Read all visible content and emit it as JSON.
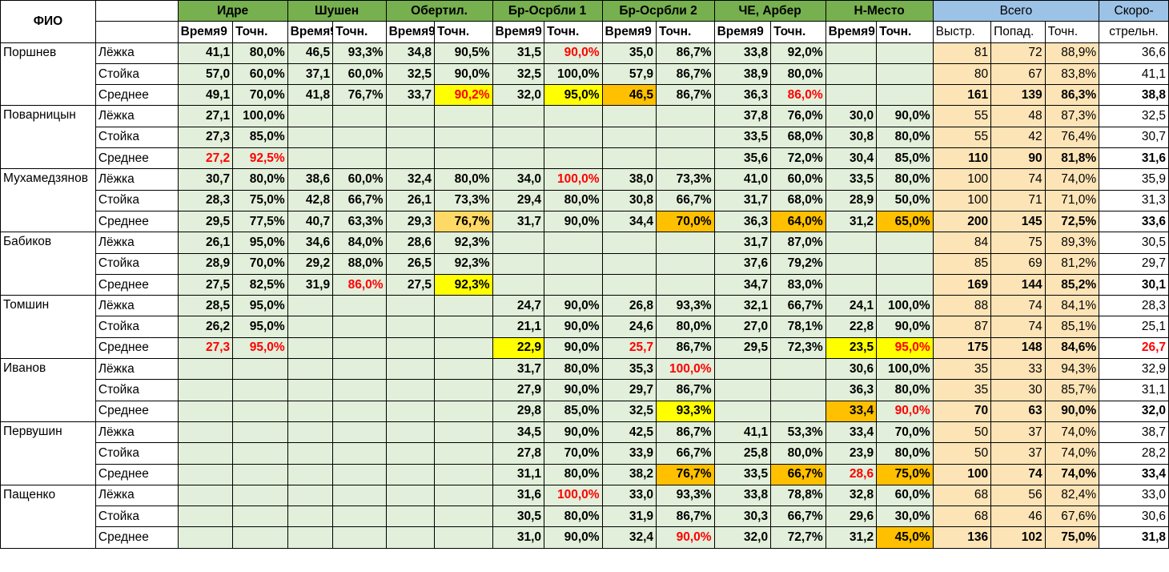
{
  "header": {
    "fio": "ФИО",
    "ranges": [
      "Идре",
      "Шушен",
      "Обертил.",
      "Бр-Осрбли 1",
      "Бр-Осрбли 2",
      "ЧЕ, Арбер",
      "Н-Место"
    ],
    "sub_time": "Время9",
    "sub_acc": "Точн.",
    "total": "Всего",
    "total_subs": [
      "Выстр.",
      "Попад.",
      "Точн."
    ],
    "rate_1": "Скоро-",
    "rate_2": "стрельн."
  },
  "highlight_colors": {
    "y": "#ffff00",
    "o": "#ffc000",
    "lo": "#ffd966",
    "red_text": "#ff0000"
  },
  "athletes": [
    {
      "name": "Поршнев",
      "rows": [
        {
          "pos": "Лёжка",
          "c": [
            "41,1",
            "80,0%",
            "46,5",
            "93,3%",
            "34,8",
            "90,5%",
            "31,5",
            "90,0%",
            "35,0",
            "86,7%",
            "33,8",
            "92,0%",
            "",
            ""
          ],
          "shots": "81",
          "hits": "72",
          "acc": "88,9%",
          "rate": "36,6"
        },
        {
          "pos": "Стойка",
          "c": [
            "57,0",
            "60,0%",
            "37,1",
            "60,0%",
            "32,5",
            "90,0%",
            "32,5",
            "100,0%",
            "57,9",
            "86,7%",
            "38,9",
            "80,0%",
            "",
            ""
          ],
          "shots": "80",
          "hits": "67",
          "acc": "83,8%",
          "rate": "41,1"
        },
        {
          "pos": "Среднее",
          "c": [
            "49,1",
            "70,0%",
            "41,8",
            "76,7%",
            "33,7",
            "90,2%",
            "32,0",
            "95,0%",
            "46,5",
            "86,7%",
            "36,3",
            "86,0%",
            "",
            ""
          ],
          "shots": "161",
          "hits": "139",
          "acc": "86,3%",
          "rate": "38,8"
        }
      ]
    },
    {
      "name": "Поварницын",
      "rows": [
        {
          "pos": "Лёжка",
          "c": [
            "27,1",
            "100,0%",
            "",
            "",
            "",
            "",
            "",
            "",
            "",
            "",
            "37,8",
            "76,0%",
            "30,0",
            "90,0%"
          ],
          "shots": "55",
          "hits": "48",
          "acc": "87,3%",
          "rate": "32,5"
        },
        {
          "pos": "Стойка",
          "c": [
            "27,3",
            "85,0%",
            "",
            "",
            "",
            "",
            "",
            "",
            "",
            "",
            "33,5",
            "68,0%",
            "30,8",
            "80,0%"
          ],
          "shots": "55",
          "hits": "42",
          "acc": "76,4%",
          "rate": "30,7"
        },
        {
          "pos": "Среднее",
          "c": [
            "27,2",
            "92,5%",
            "",
            "",
            "",
            "",
            "",
            "",
            "",
            "",
            "35,6",
            "72,0%",
            "30,4",
            "85,0%"
          ],
          "shots": "110",
          "hits": "90",
          "acc": "81,8%",
          "rate": "31,6"
        }
      ]
    },
    {
      "name": "Мухамедзянов",
      "rows": [
        {
          "pos": "Лёжка",
          "c": [
            "30,7",
            "80,0%",
            "38,6",
            "60,0%",
            "32,4",
            "80,0%",
            "34,0",
            "100,0%",
            "38,0",
            "73,3%",
            "41,0",
            "60,0%",
            "33,5",
            "80,0%"
          ],
          "shots": "100",
          "hits": "74",
          "acc": "74,0%",
          "rate": "35,9"
        },
        {
          "pos": "Стойка",
          "c": [
            "28,3",
            "75,0%",
            "42,8",
            "66,7%",
            "26,1",
            "73,3%",
            "29,4",
            "80,0%",
            "30,8",
            "66,7%",
            "31,7",
            "68,0%",
            "28,9",
            "50,0%"
          ],
          "shots": "100",
          "hits": "71",
          "acc": "71,0%",
          "rate": "31,3"
        },
        {
          "pos": "Среднее",
          "c": [
            "29,5",
            "77,5%",
            "40,7",
            "63,3%",
            "29,3",
            "76,7%",
            "31,7",
            "90,0%",
            "34,4",
            "70,0%",
            "36,3",
            "64,0%",
            "31,2",
            "65,0%"
          ],
          "shots": "200",
          "hits": "145",
          "acc": "72,5%",
          "rate": "33,6"
        }
      ]
    },
    {
      "name": "Бабиков",
      "rows": [
        {
          "pos": "Лёжка",
          "c": [
            "26,1",
            "95,0%",
            "34,6",
            "84,0%",
            "28,6",
            "92,3%",
            "",
            "",
            "",
            "",
            "31,7",
            "87,0%",
            "",
            ""
          ],
          "shots": "84",
          "hits": "75",
          "acc": "89,3%",
          "rate": "30,5"
        },
        {
          "pos": "Стойка",
          "c": [
            "28,9",
            "70,0%",
            "29,2",
            "88,0%",
            "26,5",
            "92,3%",
            "",
            "",
            "",
            "",
            "37,6",
            "79,2%",
            "",
            ""
          ],
          "shots": "85",
          "hits": "69",
          "acc": "81,2%",
          "rate": "29,7"
        },
        {
          "pos": "Среднее",
          "c": [
            "27,5",
            "82,5%",
            "31,9",
            "86,0%",
            "27,5",
            "92,3%",
            "",
            "",
            "",
            "",
            "34,7",
            "83,0%",
            "",
            ""
          ],
          "shots": "169",
          "hits": "144",
          "acc": "85,2%",
          "rate": "30,1"
        }
      ]
    },
    {
      "name": "Томшин",
      "rows": [
        {
          "pos": "Лёжка",
          "c": [
            "28,5",
            "95,0%",
            "",
            "",
            "",
            "",
            "24,7",
            "90,0%",
            "26,8",
            "93,3%",
            "32,1",
            "66,7%",
            "24,1",
            "100,0%"
          ],
          "shots": "88",
          "hits": "74",
          "acc": "84,1%",
          "rate": "28,3"
        },
        {
          "pos": "Стойка",
          "c": [
            "26,2",
            "95,0%",
            "",
            "",
            "",
            "",
            "21,1",
            "90,0%",
            "24,6",
            "80,0%",
            "27,0",
            "78,1%",
            "22,8",
            "90,0%"
          ],
          "shots": "87",
          "hits": "74",
          "acc": "85,1%",
          "rate": "25,1"
        },
        {
          "pos": "Среднее",
          "c": [
            "27,3",
            "95,0%",
            "",
            "",
            "",
            "",
            "22,9",
            "90,0%",
            "25,7",
            "86,7%",
            "29,5",
            "72,3%",
            "23,5",
            "95,0%"
          ],
          "shots": "175",
          "hits": "148",
          "acc": "84,6%",
          "rate": "26,7"
        }
      ]
    },
    {
      "name": "Иванов",
      "rows": [
        {
          "pos": "Лёжка",
          "c": [
            "",
            "",
            "",
            "",
            "",
            "",
            "31,7",
            "80,0%",
            "35,3",
            "100,0%",
            "",
            "",
            "30,6",
            "100,0%"
          ],
          "shots": "35",
          "hits": "33",
          "acc": "94,3%",
          "rate": "32,9"
        },
        {
          "pos": "Стойка",
          "c": [
            "",
            "",
            "",
            "",
            "",
            "",
            "27,9",
            "90,0%",
            "29,7",
            "86,7%",
            "",
            "",
            "36,3",
            "80,0%"
          ],
          "shots": "35",
          "hits": "30",
          "acc": "85,7%",
          "rate": "31,1"
        },
        {
          "pos": "Среднее",
          "c": [
            "",
            "",
            "",
            "",
            "",
            "",
            "29,8",
            "85,0%",
            "32,5",
            "93,3%",
            "",
            "",
            "33,4",
            "90,0%"
          ],
          "shots": "70",
          "hits": "63",
          "acc": "90,0%",
          "rate": "32,0"
        }
      ]
    },
    {
      "name": "Первушин",
      "rows": [
        {
          "pos": "Лёжка",
          "c": [
            "",
            "",
            "",
            "",
            "",
            "",
            "34,5",
            "90,0%",
            "42,5",
            "86,7%",
            "41,1",
            "53,3%",
            "33,4",
            "70,0%"
          ],
          "shots": "50",
          "hits": "37",
          "acc": "74,0%",
          "rate": "38,7"
        },
        {
          "pos": "Стойка",
          "c": [
            "",
            "",
            "",
            "",
            "",
            "",
            "27,8",
            "70,0%",
            "33,9",
            "66,7%",
            "25,8",
            "80,0%",
            "23,9",
            "80,0%"
          ],
          "shots": "50",
          "hits": "37",
          "acc": "74,0%",
          "rate": "28,2"
        },
        {
          "pos": "Среднее",
          "c": [
            "",
            "",
            "",
            "",
            "",
            "",
            "31,1",
            "80,0%",
            "38,2",
            "76,7%",
            "33,5",
            "66,7%",
            "28,6",
            "75,0%"
          ],
          "shots": "100",
          "hits": "74",
          "acc": "74,0%",
          "rate": "33,4"
        }
      ]
    },
    {
      "name": "Пащенко",
      "rows": [
        {
          "pos": "Лёжка",
          "c": [
            "",
            "",
            "",
            "",
            "",
            "",
            "31,6",
            "100,0%",
            "33,0",
            "93,3%",
            "33,8",
            "78,8%",
            "32,8",
            "60,0%"
          ],
          "shots": "68",
          "hits": "56",
          "acc": "82,4%",
          "rate": "33,0"
        },
        {
          "pos": "Стойка",
          "c": [
            "",
            "",
            "",
            "",
            "",
            "",
            "30,5",
            "80,0%",
            "31,9",
            "86,7%",
            "30,3",
            "66,7%",
            "29,6",
            "30,0%"
          ],
          "shots": "68",
          "hits": "46",
          "acc": "67,6%",
          "rate": "30,6"
        },
        {
          "pos": "Среднее",
          "c": [
            "",
            "",
            "",
            "",
            "",
            "",
            "31,0",
            "90,0%",
            "32,4",
            "90,0%",
            "32,0",
            "72,7%",
            "31,2",
            "45,0%"
          ],
          "shots": "136",
          "hits": "102",
          "acc": "75,0%",
          "rate": "31,8"
        }
      ]
    }
  ],
  "cell_styles": {
    "0-0-7": "red",
    "0-2-5": "red y",
    "0-2-7": "y",
    "0-2-8": "o",
    "0-2-11": "red",
    "1-2-0": "red",
    "1-2-1": "red",
    "2-0-7": "red",
    "2-2-5": "lo",
    "2-2-9": "o",
    "2-2-11": "o",
    "2-2-13": "o",
    "3-2-3": "red",
    "3-2-5": "y",
    "4-2-0": "red",
    "4-2-1": "red",
    "4-2-6": "y",
    "4-2-8": "red",
    "4-2-12": "y",
    "4-2-13": "red y",
    "4-2-rate": "red",
    "5-0-9": "red",
    "5-2-9": "y",
    "5-2-12": "o",
    "5-2-13": "red",
    "6-2-9": "o",
    "6-2-11": "o",
    "6-2-12": "red",
    "6-2-13": "o",
    "7-0-7": "red",
    "7-2-9": "red",
    "7-2-13": "o"
  }
}
